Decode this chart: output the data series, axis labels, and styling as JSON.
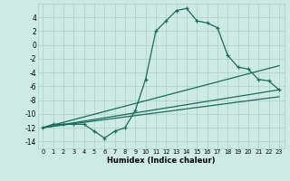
{
  "x_labels": [
    0,
    1,
    2,
    3,
    4,
    5,
    6,
    7,
    8,
    9,
    10,
    11,
    12,
    13,
    14,
    15,
    16,
    17,
    18,
    19,
    20,
    21,
    22,
    23
  ],
  "line1_x": [
    0,
    1,
    2,
    3,
    4,
    5,
    6,
    7,
    8,
    9,
    10,
    11,
    12,
    13,
    14,
    15,
    16,
    17,
    18,
    19,
    20,
    21,
    22,
    23
  ],
  "line1_y": [
    -12,
    -11.5,
    -11.5,
    -11.5,
    -11.5,
    -12.5,
    -13.5,
    -12.5,
    -12.0,
    -9.5,
    -5.0,
    2.0,
    3.5,
    5.0,
    5.3,
    3.5,
    3.2,
    2.5,
    -1.5,
    -3.2,
    -3.5,
    -5.0,
    -5.2,
    -6.5
  ],
  "line2_x": [
    0,
    23
  ],
  "line2_y": [
    -12,
    -3.0
  ],
  "line3_x": [
    0,
    23
  ],
  "line3_y": [
    -12,
    -6.5
  ],
  "line4_x": [
    0,
    23
  ],
  "line4_y": [
    -12,
    -7.5
  ],
  "bg_color": "#ceeae4",
  "grid_color": "#aacfc8",
  "line_color": "#1a6b5a",
  "xlabel": "Humidex (Indice chaleur)",
  "ylim": [
    -15,
    6
  ],
  "xlim": [
    -0.5,
    23.5
  ],
  "yticks": [
    4,
    2,
    0,
    -2,
    -4,
    -6,
    -8,
    -10,
    -12,
    -14
  ],
  "marker": "+"
}
